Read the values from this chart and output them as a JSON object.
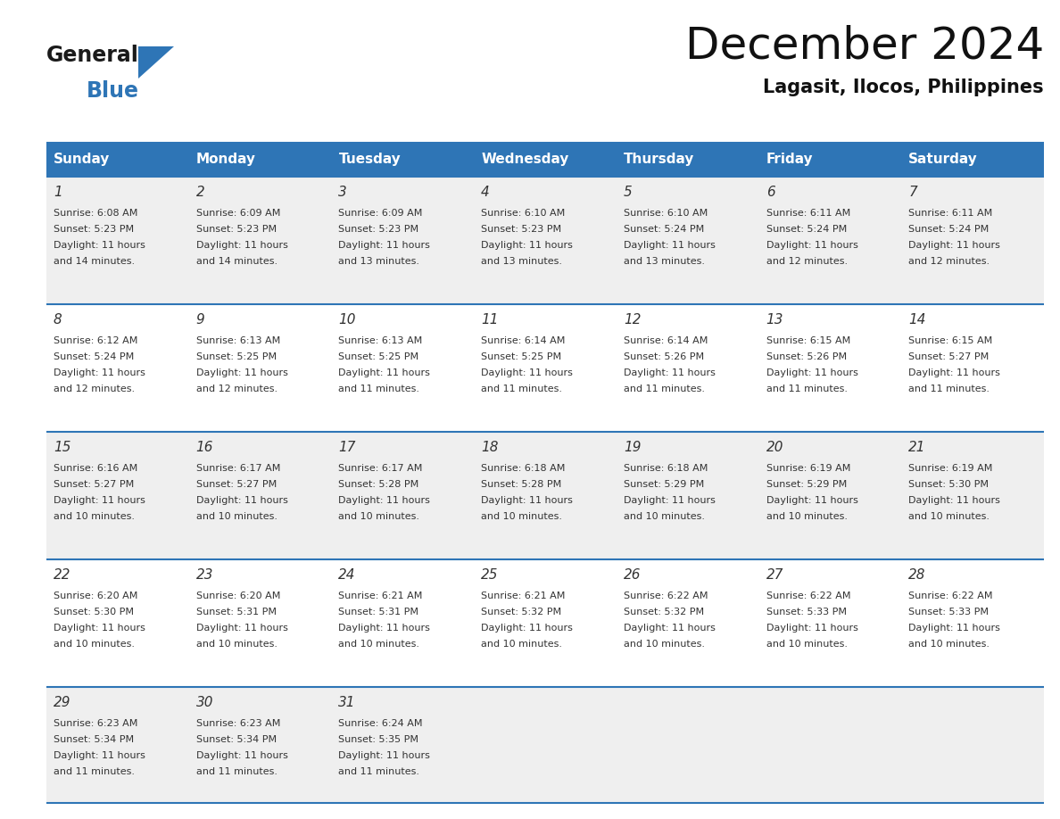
{
  "title": "December 2024",
  "subtitle": "Lagasit, Ilocos, Philippines",
  "header_color": "#2E75B6",
  "header_text_color": "#FFFFFF",
  "days_of_week": [
    "Sunday",
    "Monday",
    "Tuesday",
    "Wednesday",
    "Thursday",
    "Friday",
    "Saturday"
  ],
  "bg_color": "#FFFFFF",
  "cell_bg_even": "#EFEFEF",
  "cell_bg_odd": "#FFFFFF",
  "line_color": "#2E75B6",
  "text_color": "#333333",
  "logo_general_color": "#1a1a1a",
  "logo_blue_color": "#2E75B6",
  "weeks": [
    [
      {
        "day": 1,
        "sunrise": "6:08 AM",
        "sunset": "5:23 PM",
        "daylight": "11 hours and 14 minutes."
      },
      {
        "day": 2,
        "sunrise": "6:09 AM",
        "sunset": "5:23 PM",
        "daylight": "11 hours and 14 minutes."
      },
      {
        "day": 3,
        "sunrise": "6:09 AM",
        "sunset": "5:23 PM",
        "daylight": "11 hours and 13 minutes."
      },
      {
        "day": 4,
        "sunrise": "6:10 AM",
        "sunset": "5:23 PM",
        "daylight": "11 hours and 13 minutes."
      },
      {
        "day": 5,
        "sunrise": "6:10 AM",
        "sunset": "5:24 PM",
        "daylight": "11 hours and 13 minutes."
      },
      {
        "day": 6,
        "sunrise": "6:11 AM",
        "sunset": "5:24 PM",
        "daylight": "11 hours and 12 minutes."
      },
      {
        "day": 7,
        "sunrise": "6:11 AM",
        "sunset": "5:24 PM",
        "daylight": "11 hours and 12 minutes."
      }
    ],
    [
      {
        "day": 8,
        "sunrise": "6:12 AM",
        "sunset": "5:24 PM",
        "daylight": "11 hours and 12 minutes."
      },
      {
        "day": 9,
        "sunrise": "6:13 AM",
        "sunset": "5:25 PM",
        "daylight": "11 hours and 12 minutes."
      },
      {
        "day": 10,
        "sunrise": "6:13 AM",
        "sunset": "5:25 PM",
        "daylight": "11 hours and 11 minutes."
      },
      {
        "day": 11,
        "sunrise": "6:14 AM",
        "sunset": "5:25 PM",
        "daylight": "11 hours and 11 minutes."
      },
      {
        "day": 12,
        "sunrise": "6:14 AM",
        "sunset": "5:26 PM",
        "daylight": "11 hours and 11 minutes."
      },
      {
        "day": 13,
        "sunrise": "6:15 AM",
        "sunset": "5:26 PM",
        "daylight": "11 hours and 11 minutes."
      },
      {
        "day": 14,
        "sunrise": "6:15 AM",
        "sunset": "5:27 PM",
        "daylight": "11 hours and 11 minutes."
      }
    ],
    [
      {
        "day": 15,
        "sunrise": "6:16 AM",
        "sunset": "5:27 PM",
        "daylight": "11 hours and 10 minutes."
      },
      {
        "day": 16,
        "sunrise": "6:17 AM",
        "sunset": "5:27 PM",
        "daylight": "11 hours and 10 minutes."
      },
      {
        "day": 17,
        "sunrise": "6:17 AM",
        "sunset": "5:28 PM",
        "daylight": "11 hours and 10 minutes."
      },
      {
        "day": 18,
        "sunrise": "6:18 AM",
        "sunset": "5:28 PM",
        "daylight": "11 hours and 10 minutes."
      },
      {
        "day": 19,
        "sunrise": "6:18 AM",
        "sunset": "5:29 PM",
        "daylight": "11 hours and 10 minutes."
      },
      {
        "day": 20,
        "sunrise": "6:19 AM",
        "sunset": "5:29 PM",
        "daylight": "11 hours and 10 minutes."
      },
      {
        "day": 21,
        "sunrise": "6:19 AM",
        "sunset": "5:30 PM",
        "daylight": "11 hours and 10 minutes."
      }
    ],
    [
      {
        "day": 22,
        "sunrise": "6:20 AM",
        "sunset": "5:30 PM",
        "daylight": "11 hours and 10 minutes."
      },
      {
        "day": 23,
        "sunrise": "6:20 AM",
        "sunset": "5:31 PM",
        "daylight": "11 hours and 10 minutes."
      },
      {
        "day": 24,
        "sunrise": "6:21 AM",
        "sunset": "5:31 PM",
        "daylight": "11 hours and 10 minutes."
      },
      {
        "day": 25,
        "sunrise": "6:21 AM",
        "sunset": "5:32 PM",
        "daylight": "11 hours and 10 minutes."
      },
      {
        "day": 26,
        "sunrise": "6:22 AM",
        "sunset": "5:32 PM",
        "daylight": "11 hours and 10 minutes."
      },
      {
        "day": 27,
        "sunrise": "6:22 AM",
        "sunset": "5:33 PM",
        "daylight": "11 hours and 10 minutes."
      },
      {
        "day": 28,
        "sunrise": "6:22 AM",
        "sunset": "5:33 PM",
        "daylight": "11 hours and 10 minutes."
      }
    ],
    [
      {
        "day": 29,
        "sunrise": "6:23 AM",
        "sunset": "5:34 PM",
        "daylight": "11 hours and 11 minutes."
      },
      {
        "day": 30,
        "sunrise": "6:23 AM",
        "sunset": "5:34 PM",
        "daylight": "11 hours and 11 minutes."
      },
      {
        "day": 31,
        "sunrise": "6:24 AM",
        "sunset": "5:35 PM",
        "daylight": "11 hours and 11 minutes."
      },
      null,
      null,
      null,
      null
    ]
  ]
}
